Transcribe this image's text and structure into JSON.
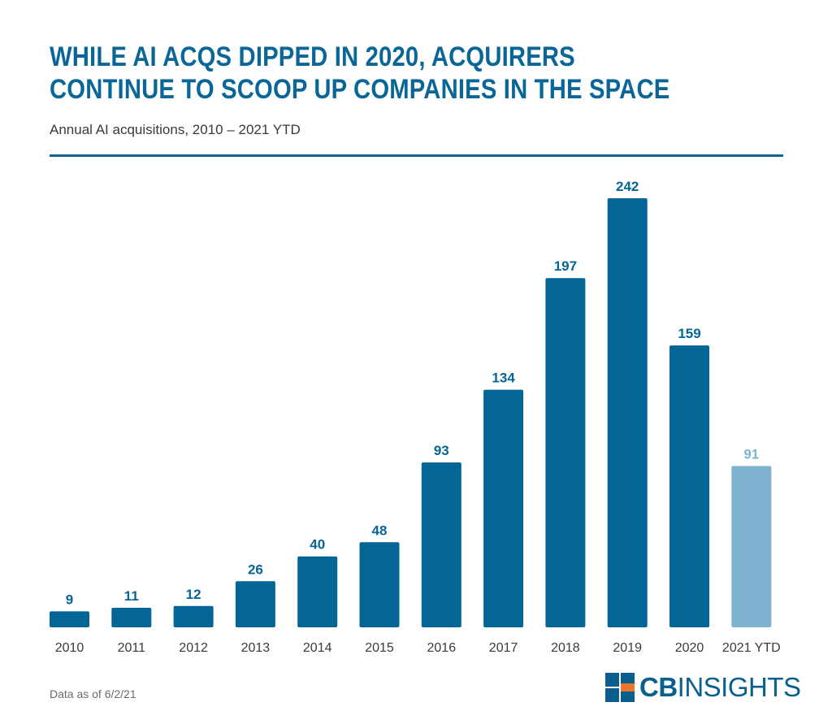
{
  "header": {
    "title_line1": "WHILE AI ACQS DIPPED IN 2020, ACQUIRERS",
    "title_line2": "CONTINUE TO SCOOP UP COMPANIES IN THE SPACE",
    "subtitle": "Annual AI acquisitions, 2010 – 2021 YTD"
  },
  "footer": {
    "note": "Data as of 6/2/21",
    "logo_bold": "CB",
    "logo_light": "INSIGHTS"
  },
  "colors": {
    "accent": "#0a6697",
    "ytd": "#7fb2d1",
    "bar": "#046597",
    "logo_orange": "#e8762d",
    "logo_blue": "#0a5f8e"
  },
  "chart_data": {
    "type": "bar",
    "categories": [
      "2010",
      "2011",
      "2012",
      "2013",
      "2014",
      "2015",
      "2016",
      "2017",
      "2018",
      "2019",
      "2020",
      "2021 YTD"
    ],
    "values": [
      9,
      11,
      12,
      26,
      40,
      48,
      93,
      134,
      197,
      242,
      159,
      91
    ],
    "highlight": [
      false,
      false,
      false,
      false,
      false,
      false,
      false,
      false,
      false,
      false,
      false,
      true
    ],
    "title": "WHILE AI ACQS DIPPED IN 2020, ACQUIRERS CONTINUE TO SCOOP UP COMPANIES IN THE SPACE",
    "subtitle": "Annual AI acquisitions, 2010 – 2021 YTD",
    "xlabel": "",
    "ylabel": "",
    "ylim": [
      0,
      242
    ],
    "grid": false,
    "legend": "none",
    "data_labels": true
  }
}
